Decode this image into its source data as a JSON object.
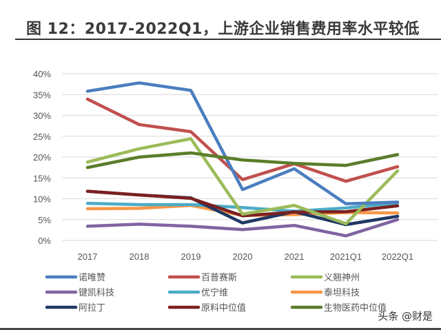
{
  "title": "图 12：2017-2022Q1，上游企业销售费用率水平较低",
  "watermark": "头条 @财是",
  "chart_data": {
    "type": "line",
    "title": "图 12：2017-2022Q1，上游企业销售费用率水平较低",
    "xlabel": "",
    "ylabel": "",
    "categories": [
      "2017",
      "2018",
      "2019",
      "2020",
      "2021",
      "2021Q1",
      "2022Q1"
    ],
    "ylim": [
      0,
      40
    ],
    "yticks": [
      "0%",
      "5%",
      "10%",
      "15%",
      "20%",
      "25%",
      "30%",
      "35%",
      "40%"
    ],
    "grid": true,
    "legend_position": "bottom",
    "series": [
      {
        "name": "诺唯赞",
        "color": "#4a7ebf",
        "values": [
          35.8,
          37.8,
          36.0,
          12.2,
          17.2,
          8.8,
          9.2
        ]
      },
      {
        "name": "百普赛斯",
        "color": "#c0504d",
        "values": [
          33.9,
          27.8,
          26.1,
          14.6,
          18.4,
          14.2,
          17.7
        ]
      },
      {
        "name": "义翘神州",
        "color": "#9bbb59",
        "values": [
          18.8,
          22.0,
          24.4,
          6.3,
          8.4,
          4.0,
          16.7
        ]
      },
      {
        "name": "键凯科技",
        "color": "#8064a2",
        "values": [
          3.4,
          3.9,
          3.4,
          2.6,
          3.6,
          1.1,
          5.0
        ]
      },
      {
        "name": "优宁维",
        "color": "#4bacc6",
        "values": [
          8.9,
          8.6,
          8.6,
          7.9,
          7.0,
          7.8,
          9.0
        ]
      },
      {
        "name": "泰坦科技",
        "color": "#f79646",
        "values": [
          7.6,
          7.7,
          8.4,
          6.0,
          6.2,
          6.7,
          6.6
        ]
      },
      {
        "name": "阿拉丁",
        "color": "#1f3864",
        "values": [
          11.8,
          10.9,
          10.2,
          4.2,
          6.9,
          3.8,
          5.8
        ]
      },
      {
        "name": "原料中位值",
        "color": "#7b2021",
        "values": [
          11.8,
          10.9,
          10.1,
          5.9,
          6.8,
          6.9,
          8.3
        ]
      },
      {
        "name": "生物医药中位值",
        "color": "#5a7d2a",
        "values": [
          17.5,
          20.0,
          21.0,
          19.3,
          18.5,
          18.0,
          20.6
        ]
      }
    ]
  }
}
